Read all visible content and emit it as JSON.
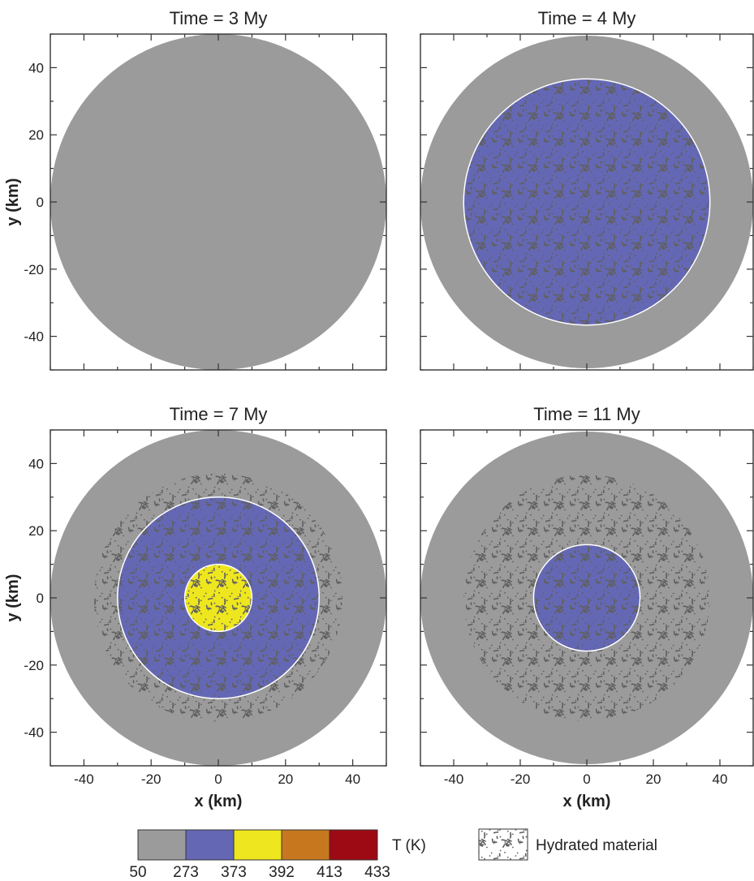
{
  "chart_data": [
    {
      "type": "contour",
      "title": "Time = 3 My",
      "xlabel": "",
      "ylabel": "y (km)",
      "xlim": [
        -50,
        50
      ],
      "ylim": [
        -50,
        50
      ],
      "zones": [
        {
          "r_outer": 50,
          "r_inner": 0,
          "temperature_band": "50-273",
          "hydrated": false
        }
      ]
    },
    {
      "type": "contour",
      "title": "Time = 4 My",
      "xlabel": "",
      "ylabel": "",
      "xlim": [
        -50,
        50
      ],
      "ylim": [
        -50,
        50
      ],
      "zones": [
        {
          "r_outer": 50,
          "r_inner": 37,
          "temperature_band": "50-273",
          "hydrated": false
        },
        {
          "r_outer": 37,
          "r_inner": 0,
          "temperature_band": "273-373",
          "hydrated": true
        }
      ]
    },
    {
      "type": "contour",
      "title": "Time = 7 My",
      "xlabel": "x (km)",
      "ylabel": "y (km)",
      "xlim": [
        -50,
        50
      ],
      "ylim": [
        -50,
        50
      ],
      "zones": [
        {
          "r_outer": 50,
          "r_inner": 37,
          "temperature_band": "50-273",
          "hydrated": false
        },
        {
          "r_outer": 37,
          "r_inner": 30,
          "temperature_band": "50-273",
          "hydrated": true
        },
        {
          "r_outer": 30,
          "r_inner": 10,
          "temperature_band": "273-373",
          "hydrated": true
        },
        {
          "r_outer": 10,
          "r_inner": 0,
          "temperature_band": "373-392",
          "hydrated": true
        }
      ]
    },
    {
      "type": "contour",
      "title": "Time = 11 My",
      "xlabel": "x (km)",
      "ylabel": "",
      "xlim": [
        -50,
        50
      ],
      "ylim": [
        -50,
        50
      ],
      "zones": [
        {
          "r_outer": 50,
          "r_inner": 37,
          "temperature_band": "50-273",
          "hydrated": false
        },
        {
          "r_outer": 37,
          "r_inner": 16,
          "temperature_band": "50-273",
          "hydrated": true
        },
        {
          "r_outer": 16,
          "r_inner": 0,
          "temperature_band": "273-373",
          "hydrated": true
        }
      ]
    }
  ],
  "ticks": [
    -40,
    -20,
    0,
    20,
    40
  ],
  "legend": {
    "title": "T (K)",
    "bounds": [
      "50",
      "273",
      "373",
      "392",
      "413",
      "433"
    ],
    "colors": [
      "#9b9b9b",
      "#6468b4",
      "#eee61f",
      "#c7781e",
      "#9e0a14"
    ],
    "hydrated_label": "Hydrated material"
  },
  "colors": {
    "50-273": "#9b9b9b",
    "273-373": "#6468b4",
    "373-392": "#eee61f",
    "boundary": "#ffffff",
    "hatch": "#5f5f5f"
  }
}
